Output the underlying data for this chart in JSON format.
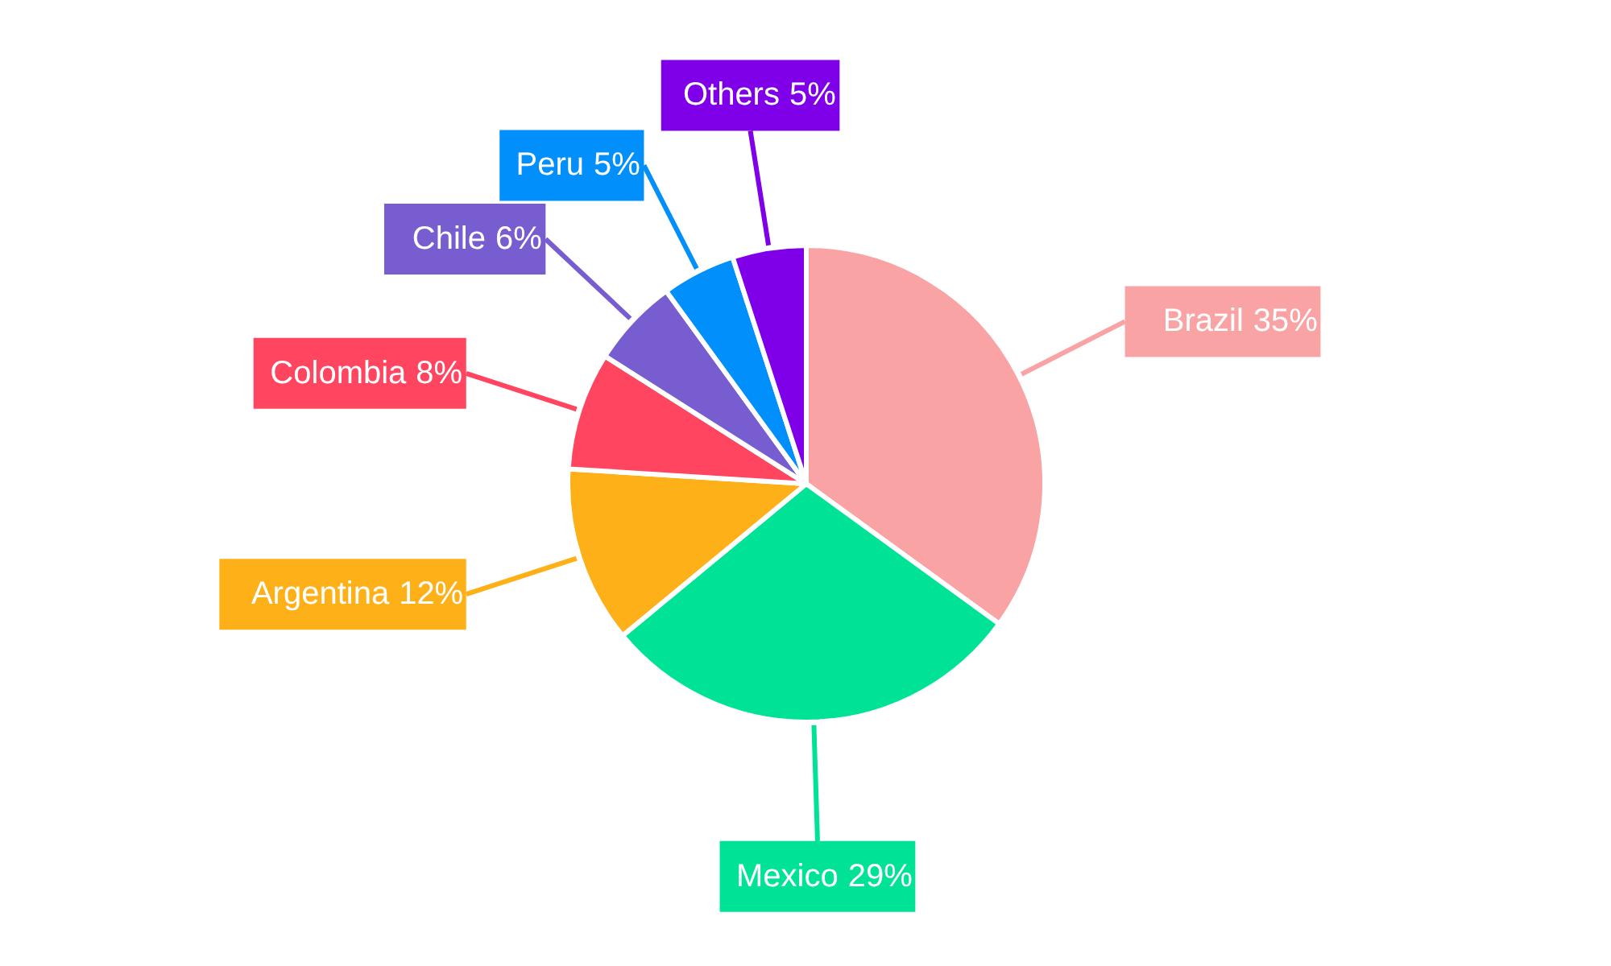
{
  "chart_data": {
    "type": "pie",
    "categories": [
      "Brazil",
      "Mexico",
      "Argentina",
      "Colombia",
      "Chile",
      "Peru",
      "Others"
    ],
    "values": [
      35,
      29,
      12,
      8,
      6,
      5,
      5
    ],
    "colors": [
      "#f9a3a4",
      "#00e396",
      "#feb019",
      "#ff4560",
      "#775dd0",
      "#008ffb",
      "#7f00e8"
    ],
    "value_labels": [
      "35%",
      "29%",
      "12%",
      "8%",
      "6%",
      "5%",
      "5%"
    ]
  }
}
